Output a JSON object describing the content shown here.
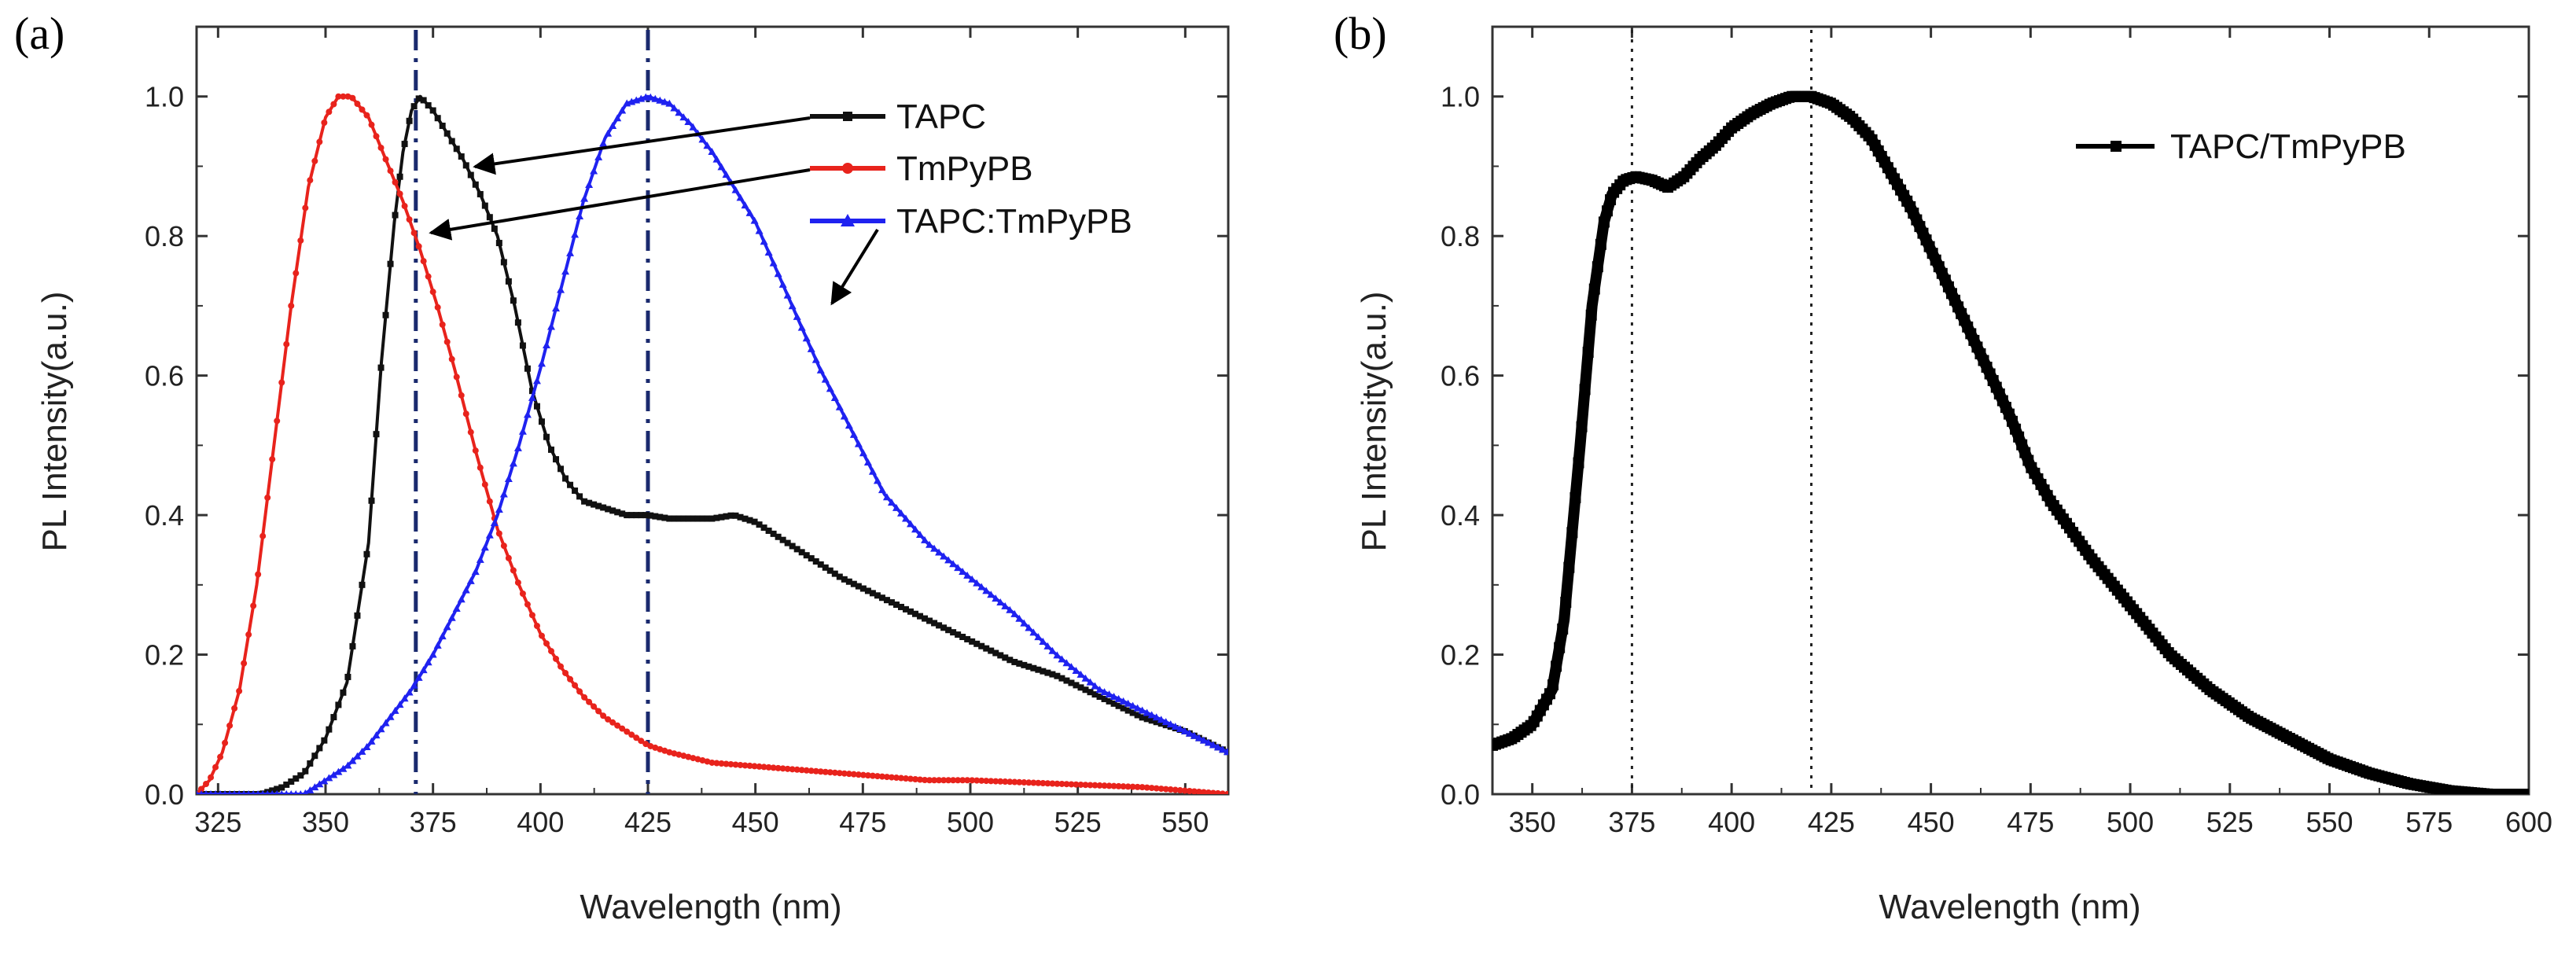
{
  "figure": {
    "panels": [
      "(a)",
      "(b)"
    ]
  },
  "colors": {
    "TAPC": "#111111",
    "TmPyPB": "#e8231c",
    "TAPC:TmPyPB": "#1f22f0",
    "TAPC/TmPyPB": "#000000",
    "refline_a": "#1a2a6e",
    "refline_b": "#222222",
    "axis": "#333333"
  },
  "chart_data": [
    {
      "panel": "(a)",
      "type": "line",
      "xlabel": "Wavelength (nm)",
      "ylabel": "PL Intensity(a.u.)",
      "xlim": [
        320,
        560
      ],
      "ylim": [
        0,
        1.1
      ],
      "xticks": [
        325,
        350,
        375,
        400,
        425,
        450,
        475,
        500,
        525,
        550
      ],
      "yticks": [
        0.0,
        0.2,
        0.4,
        0.6,
        0.8,
        1.0
      ],
      "xtick_labels": [
        "325",
        "350",
        "375",
        "400",
        "425",
        "450",
        "475",
        "500",
        "525",
        "550"
      ],
      "ytick_labels": [
        "0.0",
        "0.2",
        "0.4",
        "0.6",
        "0.8",
        "1.0"
      ],
      "legend": [
        "TAPC",
        "TmPyPB",
        "TAPC:TmPyPB"
      ],
      "reference_lines_x": [
        371,
        425
      ],
      "series": [
        {
          "name": "TAPC",
          "marker": "square",
          "x": [
            320,
            335,
            340,
            345,
            350,
            355,
            360,
            363,
            366,
            368,
            370,
            372,
            375,
            378,
            382,
            386,
            390,
            394,
            398,
            402,
            406,
            410,
            415,
            420,
            425,
            430,
            435,
            440,
            445,
            450,
            455,
            460,
            470,
            480,
            490,
            500,
            510,
            520,
            530,
            540,
            550,
            560
          ],
          "y": [
            0.0,
            0.0,
            0.01,
            0.03,
            0.08,
            0.16,
            0.36,
            0.62,
            0.82,
            0.92,
            0.98,
            1.0,
            0.98,
            0.95,
            0.91,
            0.86,
            0.8,
            0.7,
            0.58,
            0.5,
            0.45,
            0.42,
            0.41,
            0.4,
            0.4,
            0.395,
            0.395,
            0.395,
            0.4,
            0.39,
            0.37,
            0.35,
            0.31,
            0.28,
            0.25,
            0.22,
            0.19,
            0.17,
            0.14,
            0.11,
            0.09,
            0.06
          ]
        },
        {
          "name": "TmPyPB",
          "marker": "circle",
          "x": [
            320,
            323,
            326,
            330,
            334,
            338,
            342,
            346,
            350,
            353,
            356,
            360,
            364,
            368,
            372,
            376,
            380,
            385,
            390,
            395,
            400,
            405,
            410,
            415,
            420,
            425,
            430,
            440,
            450,
            460,
            470,
            480,
            490,
            500,
            520,
            540,
            560
          ],
          "y": [
            0.0,
            0.02,
            0.06,
            0.15,
            0.3,
            0.5,
            0.7,
            0.87,
            0.97,
            1.0,
            1.0,
            0.97,
            0.91,
            0.85,
            0.78,
            0.7,
            0.61,
            0.49,
            0.38,
            0.3,
            0.23,
            0.18,
            0.14,
            0.11,
            0.09,
            0.07,
            0.06,
            0.045,
            0.04,
            0.035,
            0.03,
            0.025,
            0.02,
            0.02,
            0.015,
            0.01,
            0.0
          ]
        },
        {
          "name": "TAPC:TmPyPB",
          "marker": "triangle",
          "x": [
            320,
            345,
            350,
            355,
            360,
            365,
            370,
            375,
            380,
            385,
            390,
            395,
            400,
            405,
            410,
            415,
            420,
            425,
            430,
            435,
            440,
            445,
            450,
            455,
            460,
            465,
            470,
            475,
            480,
            490,
            500,
            510,
            520,
            530,
            540,
            550,
            560
          ],
          "y": [
            0.0,
            0.0,
            0.02,
            0.04,
            0.07,
            0.11,
            0.15,
            0.2,
            0.26,
            0.32,
            0.4,
            0.5,
            0.61,
            0.73,
            0.85,
            0.94,
            0.99,
            1.0,
            0.99,
            0.96,
            0.92,
            0.87,
            0.82,
            0.75,
            0.68,
            0.61,
            0.55,
            0.49,
            0.43,
            0.36,
            0.31,
            0.26,
            0.2,
            0.15,
            0.12,
            0.09,
            0.06
          ]
        }
      ]
    },
    {
      "panel": "(b)",
      "type": "line",
      "xlabel": "Wavelength (nm)",
      "ylabel": "PL Intensity(a.u.)",
      "xlim": [
        340,
        600
      ],
      "ylim": [
        0,
        1.1
      ],
      "xticks": [
        350,
        375,
        400,
        425,
        450,
        475,
        500,
        525,
        550,
        575,
        600
      ],
      "yticks": [
        0.0,
        0.2,
        0.4,
        0.6,
        0.8,
        1.0
      ],
      "xtick_labels": [
        "350",
        "375",
        "400",
        "425",
        "450",
        "475",
        "500",
        "525",
        "550",
        "575",
        "600"
      ],
      "ytick_labels": [
        "0.0",
        "0.2",
        "0.4",
        "0.6",
        "0.8",
        "1.0"
      ],
      "legend": [
        "TAPC/TmPyPB"
      ],
      "reference_lines_x": [
        375,
        420
      ],
      "series": [
        {
          "name": "TAPC/TmPyPB",
          "marker": "square",
          "x": [
            340,
            345,
            350,
            355,
            358,
            362,
            365,
            368,
            370,
            373,
            376,
            380,
            384,
            388,
            392,
            396,
            400,
            405,
            410,
            415,
            420,
            425,
            430,
            435,
            440,
            445,
            450,
            455,
            460,
            465,
            470,
            475,
            480,
            490,
            500,
            510,
            520,
            530,
            540,
            550,
            560,
            570,
            580,
            590,
            600
          ],
          "y": [
            0.07,
            0.08,
            0.1,
            0.15,
            0.25,
            0.5,
            0.7,
            0.82,
            0.86,
            0.88,
            0.885,
            0.88,
            0.87,
            0.885,
            0.91,
            0.93,
            0.955,
            0.975,
            0.99,
            1.0,
            1.0,
            0.99,
            0.97,
            0.94,
            0.89,
            0.84,
            0.78,
            0.72,
            0.66,
            0.6,
            0.54,
            0.47,
            0.42,
            0.34,
            0.27,
            0.2,
            0.15,
            0.11,
            0.08,
            0.05,
            0.03,
            0.015,
            0.005,
            0.0,
            0.0
          ]
        }
      ]
    }
  ]
}
